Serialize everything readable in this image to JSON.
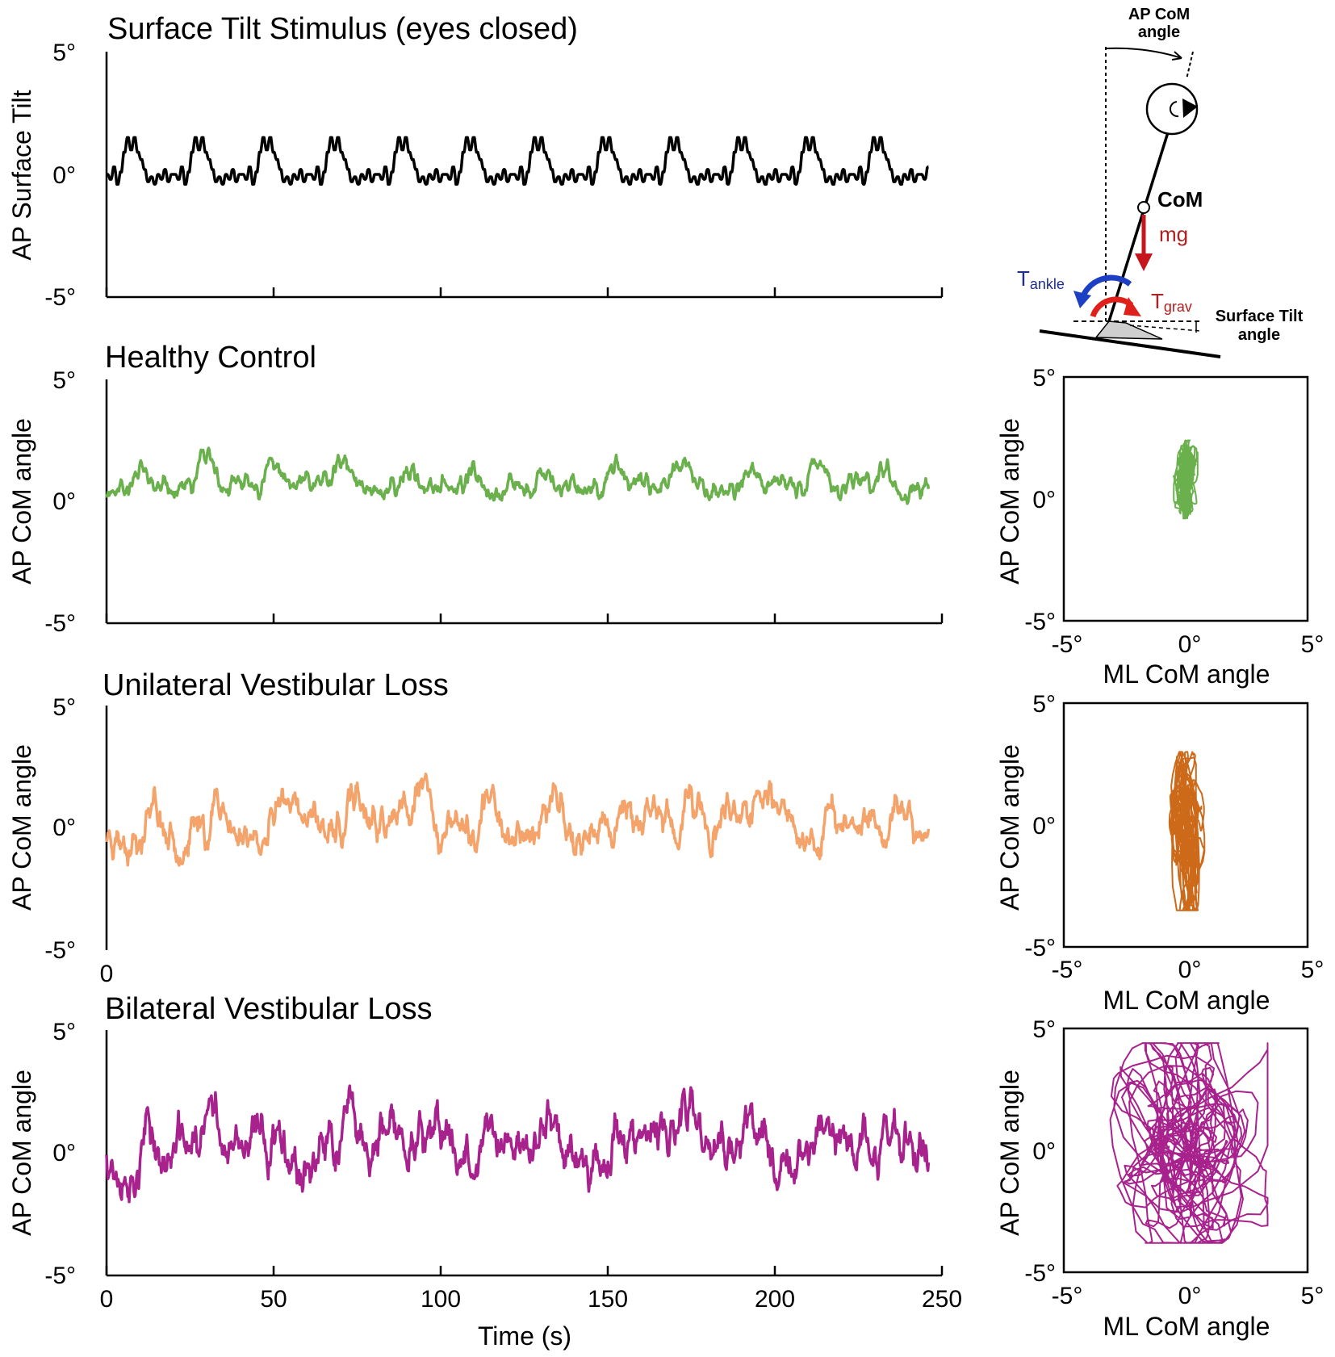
{
  "chart_data": [
    {
      "id": "stimulus",
      "type": "line",
      "title": "Surface Tilt Stimulus (eyes closed)",
      "xlabel": "",
      "ylabel": "AP Surface Tilt",
      "xlim": [
        0,
        250
      ],
      "ylim": [
        -5,
        5
      ],
      "yticks": [
        "5°",
        "0°",
        "-5°"
      ],
      "color": "#000000",
      "period_s": 20.3,
      "duration_s": 246,
      "amplitude_deg": 1.6,
      "series": [
        {
          "name": "AP Surface Tilt",
          "values": [
            0,
            -0.2,
            0.3,
            -0.4,
            0.1,
            0.9,
            1.5,
            1.0,
            1.5,
            0.9,
            0.6,
            0.2,
            -0.3,
            -0.1,
            -0.4,
            0.0,
            -0.2,
            0.2,
            -0.3,
            0.0
          ]
        }
      ]
    },
    {
      "id": "healthy",
      "type": "line",
      "title": "Healthy Control",
      "xlabel": "",
      "ylabel": "AP CoM angle",
      "xlim": [
        0,
        250
      ],
      "ylim": [
        -5,
        5
      ],
      "yticks": [
        "5°",
        "0°",
        "-5°"
      ],
      "color": "#6ab04c",
      "seed": 11,
      "noise_deg": 0.55,
      "gain": 0.6,
      "offset_deg": 0.6,
      "phase_s": 2
    },
    {
      "id": "uvl",
      "type": "line",
      "title": "Unilateral Vestibular Loss",
      "xlabel": "",
      "ylabel": "AP CoM angle",
      "xlim": [
        0,
        250
      ],
      "ylim": [
        -5,
        5
      ],
      "yticks": [
        "5°",
        "0°",
        "-5°"
      ],
      "xticks_shown": [
        "0"
      ],
      "color": "#f4a36b",
      "seed": 23,
      "noise_deg": 1.15,
      "gain": 0.9,
      "offset_deg": 0.0,
      "phase_s": 6
    },
    {
      "id": "bvl",
      "type": "line",
      "title": "Bilateral Vestibular Loss",
      "xlabel": "Time (s)",
      "ylabel": "AP CoM angle",
      "xlim": [
        0,
        250
      ],
      "ylim": [
        -5,
        5
      ],
      "yticks": [
        "5°",
        "0°",
        "-5°"
      ],
      "xticks": [
        "0",
        "50",
        "100",
        "150",
        "200",
        "250"
      ],
      "color": "#a8228e",
      "seed": 37,
      "noise_deg": 1.6,
      "gain": 0.7,
      "offset_deg": 0.2,
      "phase_s": 4
    },
    {
      "id": "healthy_xy",
      "type": "scatter",
      "xlabel": "ML CoM angle",
      "ylabel": "AP CoM angle",
      "xlim": [
        -5,
        5
      ],
      "ylim": [
        -5,
        5
      ],
      "xticks": [
        "-5°",
        "0°",
        "5°"
      ],
      "yticks": [
        "5°",
        "0°",
        "-5°"
      ],
      "color": "#6ab04c",
      "ml_center_deg": 0.0,
      "ml_spread_deg": 0.35,
      "ap_range": [
        -0.8,
        2.4
      ]
    },
    {
      "id": "uvl_xy",
      "type": "scatter",
      "xlabel": "ML CoM angle",
      "ylabel": "AP CoM angle",
      "xlim": [
        -5,
        5
      ],
      "ylim": [
        -5,
        5
      ],
      "xticks": [
        "-5°",
        "0°",
        "5°"
      ],
      "yticks": [
        "5°",
        "0°",
        "-5°"
      ],
      "color": "#cc6a1a",
      "ml_center_deg": 0.0,
      "ml_spread_deg": 0.55,
      "ap_range": [
        -3.5,
        3.0
      ]
    },
    {
      "id": "bvl_xy",
      "type": "scatter",
      "xlabel": "ML CoM angle",
      "ylabel": "AP CoM angle",
      "xlim": [
        -5,
        5
      ],
      "ylim": [
        -5,
        5
      ],
      "xticks": [
        "-5°",
        "0°",
        "5°"
      ],
      "yticks": [
        "5°",
        "0°",
        "-5°"
      ],
      "color": "#a8228e",
      "ml_center_deg": 0.0,
      "ml_spread_deg": 2.4,
      "ap_range": [
        -3.8,
        4.4
      ]
    }
  ],
  "diagram": {
    "ap_com_angle_label_line1": "AP CoM",
    "ap_com_angle_label_line2": "angle",
    "com_label": "CoM",
    "mg_label": "mg",
    "t_ankle_main": "T",
    "t_ankle_sub": "ankle",
    "t_grav_main": "T",
    "t_grav_sub": "grav",
    "surface_tilt_line1": "Surface Tilt",
    "surface_tilt_line2": "angle",
    "colors": {
      "torque_ankle": "#1d3fc4",
      "torque_grav": "#e0201a",
      "mg": "#c4161c",
      "text_red": "#b02020",
      "text_blue": "#1d2f8a"
    }
  }
}
